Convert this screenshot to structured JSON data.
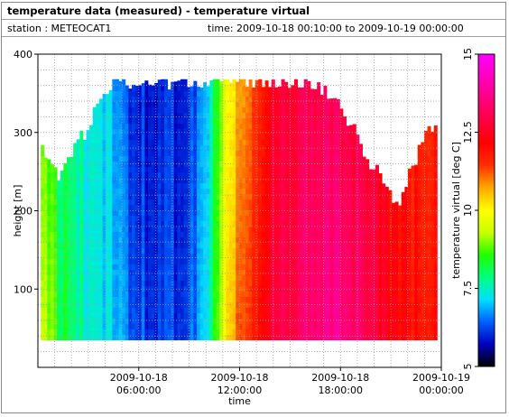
{
  "header": {
    "title": "temperature data (measured) - temperature virtual",
    "station": "station : METEOCAT1",
    "time_range": "time: 2009-10-18 00:10:00 to 2009-10-19 00:00:00"
  },
  "chart_data": {
    "type": "heatmap",
    "xlabel": "time",
    "ylabel": "height [m]",
    "xlim_hours": [
      0,
      24
    ],
    "ylim": [
      0,
      400
    ],
    "y_ticks": [
      100,
      200,
      300,
      400
    ],
    "y_tick_labels": [
      "100",
      "200",
      "300",
      "400"
    ],
    "x_ticks_hours": [
      6,
      12,
      18,
      24
    ],
    "x_tick_labels": [
      [
        "2009-10-18",
        "06:00:00"
      ],
      [
        "2009-10-18",
        "12:00:00"
      ],
      [
        "2009-10-18",
        "18:00:00"
      ],
      [
        "2009-10-19",
        "00:00:00"
      ]
    ],
    "colorbar": {
      "label": "temperature virtual [deg C]",
      "range": [
        5,
        15
      ],
      "ticks": [
        5,
        7.5,
        10,
        12.5,
        15
      ],
      "tick_labels": [
        "5",
        "7.5",
        "10",
        "12.5",
        "15"
      ],
      "colors": [
        "#000000",
        "#0000c0",
        "#0060ff",
        "#00e0ff",
        "#00ff80",
        "#20ff00",
        "#c8ff00",
        "#ffff00",
        "#ffaa00",
        "#ff3000",
        "#ff0000",
        "#ff0040",
        "#ff0080",
        "#ff00c0",
        "#ff00ff"
      ]
    },
    "data_bottom_height": 35,
    "hour_min": 0.17,
    "hour_max": 23.6,
    "top_height_profile": {
      "hours": [
        0.2,
        0.8,
        1.2,
        1.6,
        2.0,
        2.4,
        2.8,
        3.2,
        3.6,
        4.0,
        4.5,
        5.0,
        5.5,
        6.0,
        6.5,
        7.0,
        7.5,
        8.0,
        8.5,
        9.0,
        9.5,
        10.0,
        11.0,
        12.0,
        13.0,
        14.0,
        15.0,
        16.0,
        17.0,
        17.5,
        18.0,
        18.5,
        19.0,
        19.5,
        20.0,
        20.5,
        21.0,
        21.5,
        22.0,
        22.5,
        23.0,
        23.6
      ],
      "heights": [
        285,
        260,
        240,
        260,
        265,
        290,
        300,
        320,
        340,
        355,
        365,
        365,
        365,
        355,
        365,
        365,
        365,
        360,
        365,
        365,
        365,
        365,
        365,
        365,
        365,
        365,
        365,
        365,
        355,
        345,
        330,
        310,
        300,
        270,
        255,
        240,
        215,
        205,
        245,
        265,
        300,
        305
      ]
    },
    "temperature_profile": {
      "hours": [
        0.2,
        1.0,
        2.0,
        3.0,
        4.0,
        5.0,
        6.0,
        7.0,
        8.0,
        9.0,
        10.0,
        11.0,
        12.0,
        13.0,
        14.0,
        15.0,
        16.0,
        17.0,
        18.0,
        19.0,
        20.0,
        21.0,
        22.0,
        23.0,
        23.6
      ],
      "surface": [
        9.5,
        8.6,
        8.0,
        7.4,
        7.2,
        6.6,
        6.3,
        6.2,
        6.1,
        6.2,
        7.2,
        9.8,
        11.3,
        12.0,
        12.8,
        13.0,
        13.3,
        13.6,
        13.7,
        13.4,
        12.7,
        12.3,
        12.0,
        11.9,
        12.0
      ],
      "aloft": [
        9.0,
        8.2,
        7.8,
        7.3,
        7.2,
        6.3,
        6.0,
        6.0,
        5.9,
        6.0,
        6.9,
        9.5,
        10.8,
        11.6,
        12.5,
        12.8,
        12.9,
        13.0,
        12.9,
        12.8,
        12.5,
        12.0,
        11.8,
        11.6,
        11.8
      ]
    }
  }
}
